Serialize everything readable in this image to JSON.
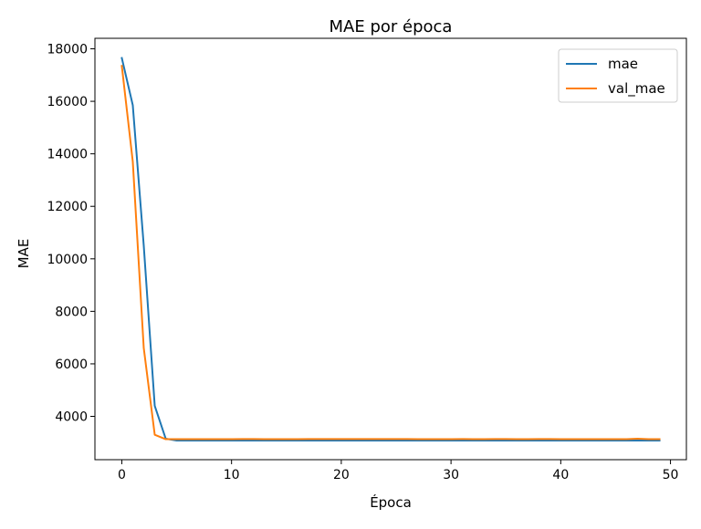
{
  "chart_data": {
    "type": "line",
    "title": "MAE por época",
    "xlabel": "Época",
    "ylabel": "MAE",
    "xlim": [
      -2.45,
      51.45
    ],
    "ylim": [
      2350,
      18400
    ],
    "xticks": [
      0,
      10,
      20,
      30,
      40,
      50
    ],
    "yticks": [
      4000,
      6000,
      8000,
      10000,
      12000,
      14000,
      16000,
      18000
    ],
    "grid": false,
    "legend_position": "top-right",
    "x": [
      0,
      1,
      2,
      3,
      4,
      5,
      6,
      7,
      8,
      9,
      10,
      11,
      12,
      13,
      14,
      15,
      16,
      17,
      18,
      19,
      20,
      21,
      22,
      23,
      24,
      25,
      26,
      27,
      28,
      29,
      30,
      31,
      32,
      33,
      34,
      35,
      36,
      37,
      38,
      39,
      40,
      41,
      42,
      43,
      44,
      45,
      46,
      47,
      48,
      49
    ],
    "series": [
      {
        "name": "mae",
        "color": "#1f77b4",
        "values": [
          17650,
          15850,
          10500,
          4400,
          3150,
          3080,
          3080,
          3080,
          3080,
          3080,
          3080,
          3080,
          3080,
          3080,
          3080,
          3080,
          3080,
          3080,
          3080,
          3080,
          3080,
          3080,
          3080,
          3080,
          3080,
          3080,
          3080,
          3080,
          3080,
          3080,
          3080,
          3080,
          3080,
          3080,
          3080,
          3080,
          3080,
          3080,
          3080,
          3080,
          3080,
          3080,
          3080,
          3080,
          3080,
          3080,
          3080,
          3080,
          3080,
          3080
        ]
      },
      {
        "name": "val_mae",
        "color": "#ff7f0e",
        "values": [
          17350,
          13700,
          6600,
          3300,
          3130,
          3130,
          3130,
          3130,
          3130,
          3130,
          3130,
          3135,
          3135,
          3130,
          3130,
          3130,
          3130,
          3135,
          3135,
          3135,
          3135,
          3135,
          3135,
          3135,
          3135,
          3135,
          3135,
          3130,
          3130,
          3130,
          3130,
          3135,
          3130,
          3130,
          3135,
          3135,
          3130,
          3130,
          3135,
          3135,
          3130,
          3130,
          3130,
          3130,
          3130,
          3130,
          3130,
          3150,
          3130,
          3130
        ]
      }
    ]
  }
}
